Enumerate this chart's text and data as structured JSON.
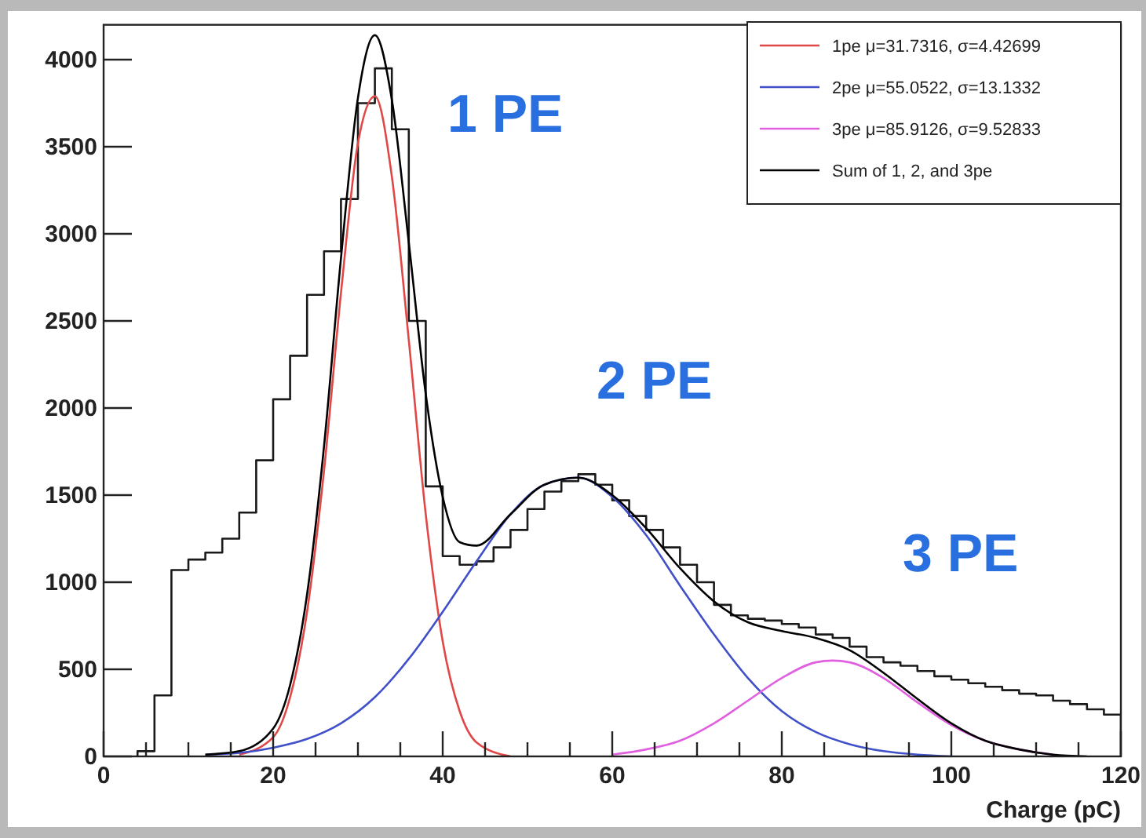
{
  "chart_data": {
    "type": "histogram",
    "xlabel": "Charge (pC)",
    "xlim": [
      0,
      120
    ],
    "ylim": [
      0,
      4200
    ],
    "xticks": [
      0,
      {
        "value": 5,
        "label": null
      },
      {
        "value": 10,
        "label": null
      },
      {
        "value": 15,
        "label": null
      },
      20,
      {
        "value": 25,
        "label": null
      },
      {
        "value": 30,
        "label": null
      },
      {
        "value": 35,
        "label": null
      },
      40,
      {
        "value": 45,
        "label": null
      },
      {
        "value": 50,
        "label": null
      },
      {
        "value": 55,
        "label": null
      },
      60,
      {
        "value": 65,
        "label": null
      },
      {
        "value": 70,
        "label": null
      },
      {
        "value": 75,
        "label": null
      },
      80,
      {
        "value": 85,
        "label": null
      },
      {
        "value": 90,
        "label": null
      },
      {
        "value": 95,
        "label": null
      },
      100,
      {
        "value": 105,
        "label": null
      },
      {
        "value": 110,
        "label": null
      },
      {
        "value": 115,
        "label": null
      },
      120
    ],
    "yticks": [
      0,
      500,
      1000,
      1500,
      2000,
      2500,
      3000,
      3500,
      4000
    ],
    "grid": false,
    "legend": "top right",
    "annotations": [
      "1 PE",
      "2 PE",
      "3 PE"
    ],
    "color": "#1a1a1a",
    "bins": [
      4,
      6,
      8,
      10,
      12,
      14,
      16,
      18,
      20,
      22,
      24,
      26,
      28,
      30,
      32,
      34,
      36,
      38,
      40,
      42,
      44,
      46,
      48,
      50,
      52,
      54,
      56,
      58,
      60,
      62,
      64,
      66,
      68,
      70,
      72,
      74,
      76,
      78,
      80,
      82,
      84,
      86,
      88,
      90,
      92,
      94,
      96,
      98,
      100,
      102,
      104,
      106,
      108,
      110,
      112,
      114,
      116,
      118,
      120
    ],
    "values": [
      30,
      350,
      1070,
      1130,
      1170,
      1250,
      1400,
      1700,
      2050,
      2300,
      2650,
      2900,
      3200,
      3750,
      3950,
      3600,
      2500,
      1550,
      1150,
      1100,
      1120,
      1200,
      1300,
      1420,
      1520,
      1580,
      1620,
      1560,
      1470,
      1380,
      1300,
      1200,
      1100,
      1000,
      870,
      810,
      790,
      780,
      760,
      740,
      700,
      680,
      630,
      570,
      540,
      520,
      490,
      460,
      440,
      420,
      400,
      380,
      360,
      350,
      320,
      300,
      270,
      240
    ],
    "series": [
      {
        "type": "line",
        "name": "1pe μ=31.7316, σ=4.42699",
        "color": "#e04848",
        "x": [
          16,
          20,
          22,
          24,
          26,
          28,
          30,
          32,
          34,
          36,
          38,
          40,
          42,
          44,
          48
        ],
        "values": [
          10,
          110,
          340,
          830,
          1640,
          2660,
          3520,
          3790,
          3330,
          2390,
          1390,
          660,
          260,
          80,
          0
        ]
      },
      {
        "type": "line",
        "name": "2pe μ=55.0522, σ=13.1332",
        "color": "#4050c8",
        "x": [
          12,
          16,
          20,
          24,
          28,
          32,
          36,
          40,
          44,
          48,
          52,
          56,
          60,
          64,
          68,
          72,
          76,
          80,
          84,
          88,
          92,
          96,
          100
        ],
        "values": [
          10,
          20,
          50,
          100,
          190,
          340,
          560,
          830,
          1120,
          1390,
          1560,
          1600,
          1490,
          1270,
          980,
          700,
          450,
          260,
          140,
          70,
          30,
          10,
          0
        ]
      },
      {
        "type": "line",
        "name": "3pe μ=85.9126, σ=9.52833",
        "color": "#e060e0",
        "x": [
          60,
          64,
          68,
          72,
          76,
          80,
          84,
          86,
          88,
          92,
          96,
          100,
          104,
          108,
          112
        ],
        "values": [
          10,
          40,
          90,
          190,
          320,
          450,
          540,
          550,
          540,
          450,
          310,
          180,
          90,
          40,
          10
        ]
      },
      {
        "type": "line",
        "name": "Sum of 1, 2, and 3pe",
        "color": "#000000",
        "x": [
          12,
          16,
          20,
          22,
          24,
          26,
          28,
          30,
          32,
          34,
          36,
          38,
          40,
          42,
          44,
          48,
          52,
          56,
          60,
          64,
          68,
          72,
          76,
          80,
          84,
          88,
          92,
          96,
          100,
          104,
          108,
          112,
          116
        ],
        "values": [
          10,
          30,
          160,
          410,
          930,
          1780,
          2860,
          3780,
          4140,
          3770,
          2950,
          2080,
          1490,
          1230,
          1210,
          1390,
          1560,
          1600,
          1500,
          1310,
          1080,
          890,
          770,
          720,
          680,
          610,
          480,
          330,
          190,
          90,
          40,
          10,
          0
        ]
      }
    ]
  }
}
